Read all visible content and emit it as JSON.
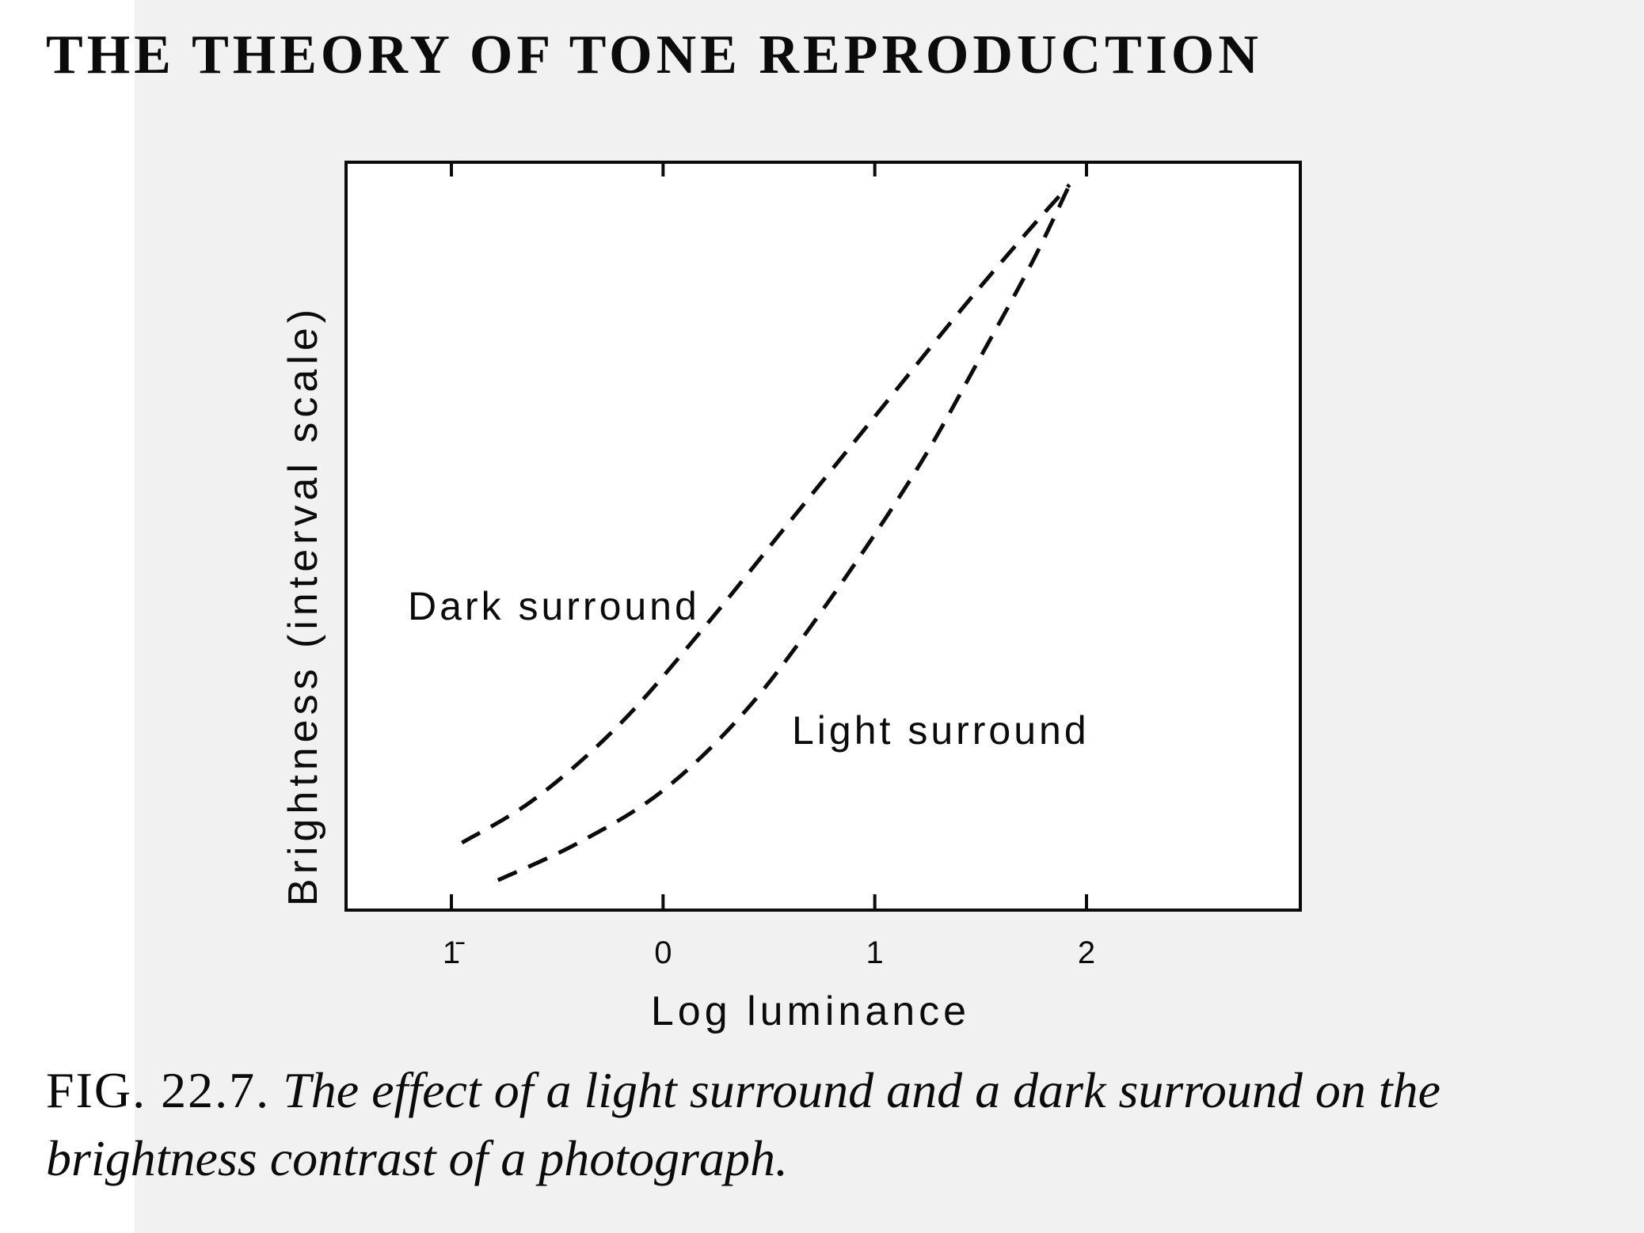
{
  "running_head": "THE THEORY OF TONE REPRODUCTION",
  "caption": {
    "figure_number": "FIG. 22.7.",
    "text": "The effect of a light surround and a dark surround on the brightness contrast of a photograph."
  },
  "chart_data": {
    "type": "line",
    "xlabel": "Log luminance",
    "ylabel": "Brightness (interval scale)",
    "x_ticks": [
      {
        "value": -1,
        "label": "1̄"
      },
      {
        "value": 0,
        "label": "0"
      },
      {
        "value": 1,
        "label": "1"
      },
      {
        "value": 2,
        "label": "2"
      }
    ],
    "xlim": [
      -1.5,
      3.0
    ],
    "ylim": [
      0,
      1
    ],
    "grid": false,
    "series": [
      {
        "name": "Dark surround",
        "style": "dashed",
        "x": [
          -0.95,
          -0.6,
          -0.2,
          0.2,
          0.6,
          1.0,
          1.4,
          1.7,
          1.92
        ],
        "y": [
          0.09,
          0.15,
          0.25,
          0.38,
          0.52,
          0.66,
          0.8,
          0.9,
          0.97
        ]
      },
      {
        "name": "Light surround",
        "style": "dashed",
        "x": [
          -0.78,
          -0.4,
          0.0,
          0.4,
          0.8,
          1.2,
          1.5,
          1.75,
          1.92
        ],
        "y": [
          0.04,
          0.09,
          0.16,
          0.27,
          0.42,
          0.59,
          0.74,
          0.87,
          0.97
        ]
      }
    ],
    "annotations": [
      "Dark surround",
      "Light surround"
    ]
  },
  "colors": {
    "ink": "#0b0b0b",
    "paper": "#ffffff",
    "bleed": "#cfcfcf"
  }
}
